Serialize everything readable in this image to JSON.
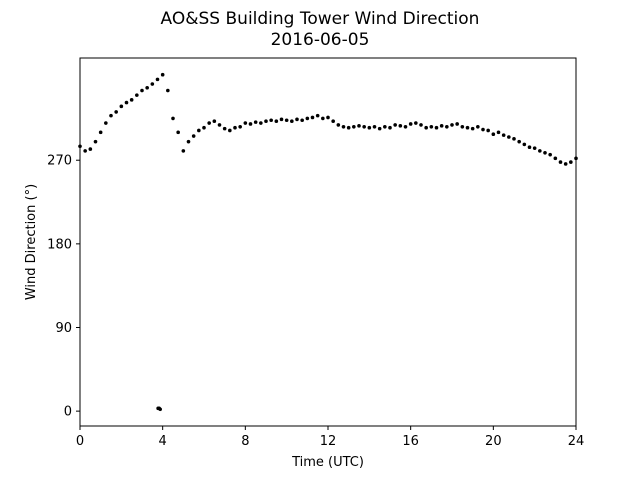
{
  "chart_data": {
    "type": "scatter",
    "title": "AO&SS Building Tower Wind Direction",
    "subtitle": "2016-06-05",
    "xlabel": "Time (UTC)",
    "ylabel": "Wind Direction (°)",
    "xlim": [
      0,
      24
    ],
    "ylim": [
      -16,
      380
    ],
    "xticks": [
      0,
      4,
      8,
      12,
      16,
      20,
      24
    ],
    "xtick_labels": [
      "0",
      "4",
      "8",
      "12",
      "16",
      "20",
      "24"
    ],
    "yticks": [
      0,
      90,
      180,
      270
    ],
    "ytick_labels": [
      "0",
      "90",
      "180",
      "270"
    ],
    "grid": false,
    "marker_color": "#000000",
    "series": [
      {
        "x": [
          0.0,
          0.25,
          0.5,
          0.75,
          1.0,
          1.25,
          1.5,
          1.75,
          2.0,
          2.25,
          2.5,
          2.75,
          3.0,
          3.25,
          3.5,
          3.75,
          4.0,
          4.25,
          4.5,
          4.75,
          5.0,
          5.25,
          5.5,
          5.75,
          6.0,
          6.25,
          6.5,
          6.75,
          7.0,
          7.25,
          7.5,
          7.75,
          8.0,
          8.25,
          8.5,
          8.75,
          9.0,
          9.25,
          9.5,
          9.75,
          10.0,
          10.25,
          10.5,
          10.75,
          11.0,
          11.25,
          11.5,
          11.75,
          12.0,
          12.25,
          12.5,
          12.75,
          13.0,
          13.25,
          13.5,
          13.75,
          14.0,
          14.25,
          14.5,
          14.75,
          15.0,
          15.25,
          15.5,
          15.75,
          16.0,
          16.25,
          16.5,
          16.75,
          17.0,
          17.25,
          17.5,
          17.75,
          18.0,
          18.25,
          18.5,
          18.75,
          19.0,
          19.25,
          19.5,
          19.75,
          20.0,
          20.25,
          20.5,
          20.75,
          21.0,
          21.25,
          21.5,
          21.75,
          22.0,
          22.25,
          22.5,
          22.75,
          23.0,
          23.25,
          23.5,
          23.75,
          24.0,
          3.78,
          3.83,
          3.88
        ],
        "y": [
          285,
          280,
          282,
          290,
          300,
          310,
          318,
          322,
          328,
          332,
          335,
          340,
          345,
          348,
          352,
          357,
          362,
          345,
          315,
          300,
          280,
          290,
          296,
          302,
          305,
          310,
          312,
          308,
          304,
          302,
          305,
          306,
          310,
          309,
          311,
          310,
          312,
          313,
          312,
          314,
          313,
          312,
          314,
          313,
          315,
          316,
          318,
          315,
          316,
          312,
          308,
          306,
          305,
          306,
          307,
          306,
          305,
          306,
          304,
          306,
          305,
          308,
          307,
          306,
          309,
          310,
          308,
          305,
          306,
          305,
          307,
          306,
          308,
          309,
          306,
          305,
          304,
          306,
          303,
          302,
          298,
          300,
          297,
          295,
          293,
          290,
          287,
          284,
          283,
          280,
          278,
          276,
          272,
          268,
          266,
          268,
          272,
          3,
          3,
          2
        ]
      }
    ]
  }
}
